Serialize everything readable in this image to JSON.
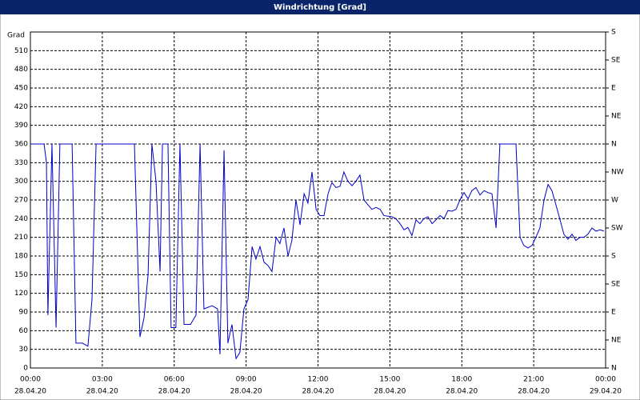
{
  "chart_data": {
    "type": "line",
    "title": "Windrichtung [Grad]",
    "y_label": "Grad",
    "color": "#0000cc",
    "grid": true,
    "x": [
      0,
      0.57,
      0.67,
      0.73,
      0.9,
      1.07,
      1.23,
      1.74,
      1.9,
      2.17,
      2.4,
      2.57,
      2.74,
      4.34,
      4.57,
      4.74,
      4.91,
      5.07,
      5.24,
      5.41,
      5.51,
      5.74,
      5.87,
      6.07,
      6.24,
      6.41,
      6.68,
      6.91,
      7.08,
      7.24,
      7.58,
      7.81,
      7.91,
      8.08,
      8.24,
      8.41,
      8.58,
      8.74,
      8.91,
      9.08,
      9.25,
      9.41,
      9.58,
      9.75,
      9.91,
      10.08,
      10.25,
      10.41,
      10.58,
      10.75,
      10.91,
      11.08,
      11.25,
      11.42,
      11.58,
      11.75,
      11.92,
      12.08,
      12.25,
      12.42,
      12.58,
      12.75,
      12.92,
      13.08,
      13.25,
      13.42,
      13.58,
      13.75,
      13.92,
      14.09,
      14.25,
      14.42,
      14.59,
      14.75,
      15.09,
      15.25,
      15.42,
      15.59,
      15.75,
      15.92,
      16.09,
      16.25,
      16.42,
      16.59,
      16.76,
      16.92,
      17.09,
      17.26,
      17.42,
      17.59,
      17.76,
      17.92,
      18.09,
      18.26,
      18.42,
      18.59,
      18.76,
      18.93,
      19.09,
      19.26,
      19.43,
      19.59,
      20.26,
      20.43,
      20.59,
      20.76,
      20.93,
      21.09,
      21.26,
      21.43,
      21.6,
      21.76,
      21.93,
      22.1,
      22.26,
      22.43,
      22.6,
      22.76,
      22.93,
      23.1,
      23.26,
      23.43,
      23.6,
      23.77,
      23.93
    ],
    "values": [
      360,
      360,
      330,
      85,
      360,
      65,
      360,
      360,
      40,
      40,
      35,
      110,
      360,
      360,
      50,
      80,
      150,
      360,
      300,
      155,
      360,
      360,
      65,
      65,
      360,
      70,
      70,
      85,
      360,
      95,
      100,
      95,
      22,
      350,
      40,
      70,
      15,
      25,
      95,
      110,
      195,
      175,
      195,
      170,
      165,
      155,
      210,
      200,
      225,
      180,
      205,
      270,
      230,
      280,
      265,
      315,
      255,
      245,
      245,
      280,
      298,
      290,
      292,
      315,
      300,
      293,
      300,
      310,
      270,
      262,
      255,
      258,
      255,
      245,
      243,
      240,
      232,
      222,
      226,
      213,
      238,
      232,
      240,
      243,
      232,
      238,
      245,
      240,
      253,
      252,
      255,
      270,
      282,
      272,
      285,
      290,
      278,
      285,
      282,
      280,
      225,
      360,
      360,
      210,
      197,
      193,
      197,
      210,
      225,
      270,
      295,
      285,
      262,
      238,
      215,
      207,
      215,
      205,
      210,
      210,
      215,
      225,
      220,
      222,
      220
    ],
    "xlim": [
      0,
      24
    ],
    "xticks": [
      {
        "value": 0,
        "label": "00:00"
      },
      {
        "value": 3,
        "label": "03:00"
      },
      {
        "value": 6,
        "label": "06:00"
      },
      {
        "value": 9,
        "label": "09:00"
      },
      {
        "value": 12,
        "label": "12:00"
      },
      {
        "value": 15,
        "label": "15:00"
      },
      {
        "value": 18,
        "label": "18:00"
      },
      {
        "value": 21,
        "label": "21:00"
      },
      {
        "value": 24,
        "label": "00:00"
      }
    ],
    "xtick_dates": [
      "28.04.20",
      "28.04.20",
      "28.04.20",
      "28.04.20",
      "28.04.20",
      "28.04.20",
      "28.04.20",
      "28.04.20",
      "29.04.20"
    ],
    "ylim": [
      0,
      540
    ],
    "yticks": [
      0,
      30,
      60,
      90,
      120,
      150,
      180,
      210,
      240,
      270,
      300,
      330,
      360,
      390,
      420,
      450,
      480,
      510
    ],
    "y2lim": [
      0,
      540
    ],
    "y2ticks": [
      {
        "value": 0,
        "label": "N"
      },
      {
        "value": 45,
        "label": "NE"
      },
      {
        "value": 90,
        "label": "E"
      },
      {
        "value": 135,
        "label": "SE"
      },
      {
        "value": 180,
        "label": "S"
      },
      {
        "value": 225,
        "label": "SW"
      },
      {
        "value": 270,
        "label": "W"
      },
      {
        "value": 315,
        "label": "NW"
      },
      {
        "value": 360,
        "label": "N"
      },
      {
        "value": 405,
        "label": "NE"
      },
      {
        "value": 450,
        "label": "E"
      },
      {
        "value": 495,
        "label": "SE"
      },
      {
        "value": 540,
        "label": "S"
      }
    ]
  }
}
